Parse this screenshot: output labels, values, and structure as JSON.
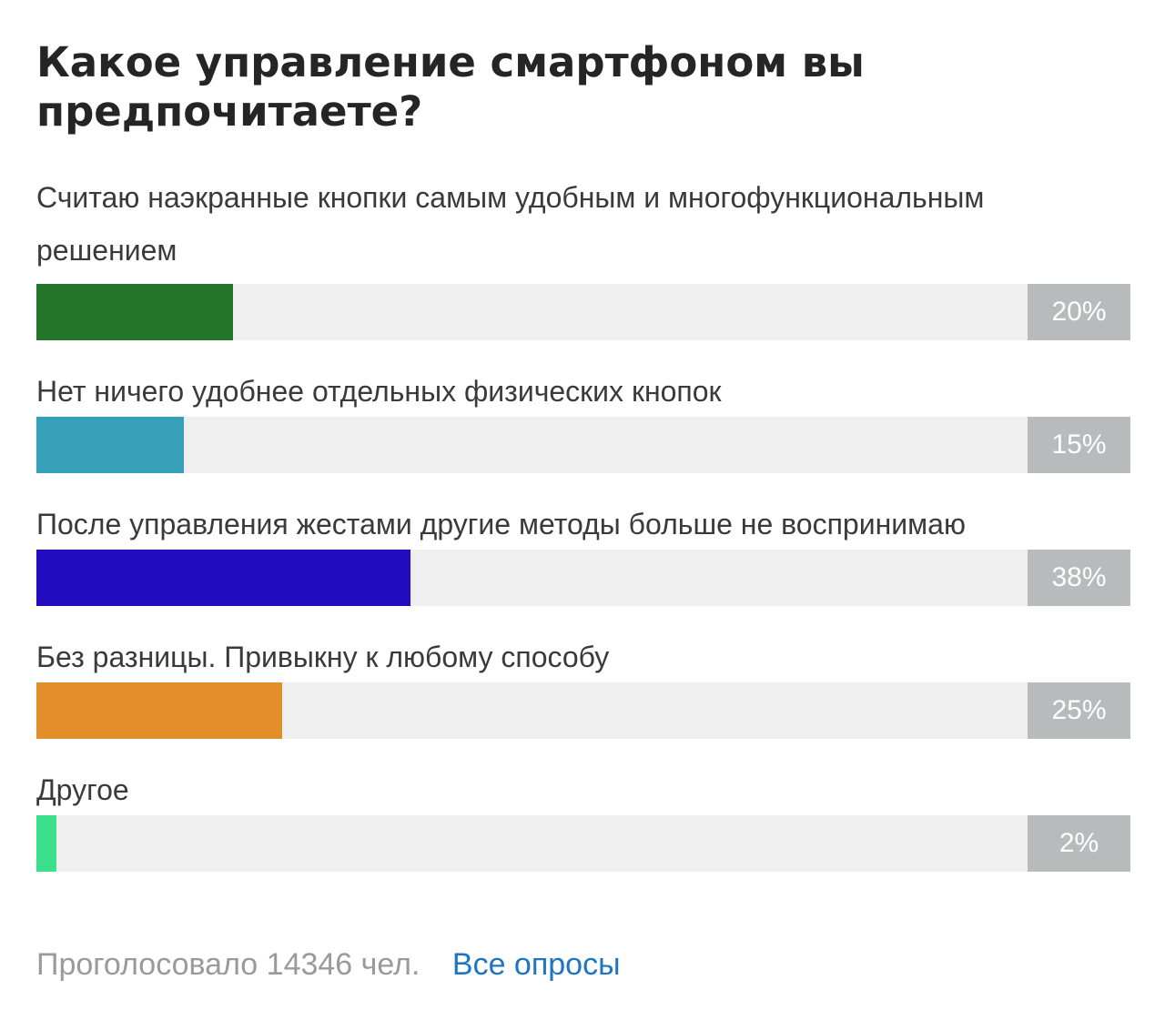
{
  "poll": {
    "title": "Какое управление смартфоном вы предпочитаете?",
    "options": [
      {
        "label": "Считаю наэкранные кнопки самым удобным и многофункциональным решением",
        "percent": 20,
        "percent_label": "20%",
        "color": "#25752a"
      },
      {
        "label": "Нет ничего удобнее отдельных физических кнопок",
        "percent": 15,
        "percent_label": "15%",
        "color": "#35a0b8"
      },
      {
        "label": "После управления жестами другие методы больше не воспринимаю",
        "percent": 38,
        "percent_label": "38%",
        "color": "#230cbf"
      },
      {
        "label": "Без разницы. Привыкну к любому способу",
        "percent": 25,
        "percent_label": "25%",
        "color": "#e28e2a"
      },
      {
        "label": "Другое",
        "percent": 2,
        "percent_label": "2%",
        "color": "#3de08a"
      }
    ]
  },
  "footer": {
    "voted_text": "Проголосовало 14346 чел.",
    "all_polls_link": "Все опросы"
  },
  "colors": {
    "track": "#efefef",
    "percent_box": "#b8bbbb",
    "link": "#1f76c0"
  }
}
